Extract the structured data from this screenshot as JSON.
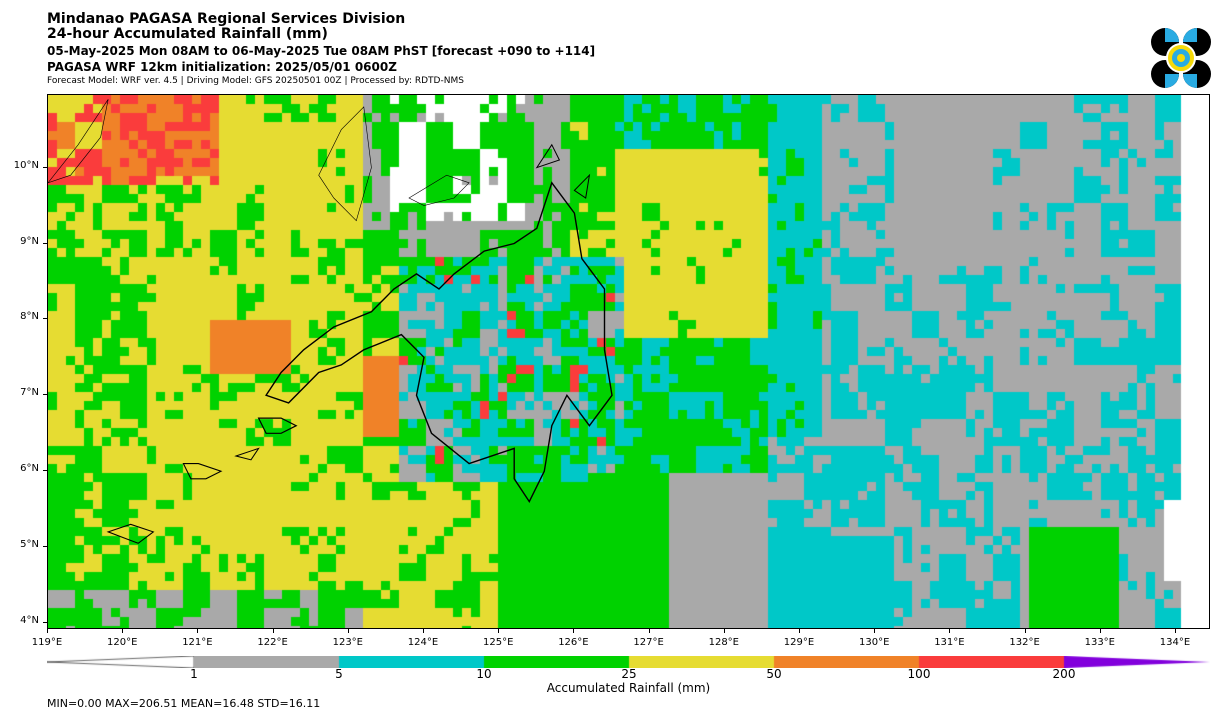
{
  "header": {
    "title": "Mindanao PAGASA Regional Services Division",
    "subtitle": "24-hour Accumulated Rainfall (mm)",
    "period": "05-May-2025 Mon 08AM to 06-May-2025 Tue 08AM PhST [forecast +090 to +114]",
    "init": "PAGASA WRF 12km initialization: 2025/05/01 0600Z",
    "credits": "Forecast Model: WRF ver. 4.5 | Driving Model: GFS 20250501 00Z | Processed by: RDTD-NMS"
  },
  "logo": {
    "icon": "pagasa-seal-icon",
    "colors": [
      "#000000",
      "#29abe2",
      "#f5d90a"
    ]
  },
  "map": {
    "lon_range": [
      119,
      134.5
    ],
    "lat_range": [
      3.9,
      10.95
    ],
    "lat_labels": [
      "4°N",
      "5°N",
      "6°N",
      "7°N",
      "8°N",
      "9°N",
      "10°N"
    ],
    "lon_labels": [
      "119°E",
      "120°E",
      "121°E",
      "122°E",
      "123°E",
      "124°E",
      "125°E",
      "126°E",
      "127°E",
      "128°E",
      "129°E",
      "130°E",
      "131°E",
      "132°E",
      "133°E",
      "134°E"
    ]
  },
  "colorbar": {
    "title": "Accumulated Rainfall (mm)",
    "levels": [
      "1",
      "5",
      "10",
      "25",
      "50",
      "100",
      "200"
    ],
    "colors": [
      "#ffffff",
      "#a9a9a9",
      "#00c8c8",
      "#00d200",
      "#e6dc32",
      "#f08228",
      "#fa3c3c",
      "#8200dc"
    ]
  },
  "stats": "MIN=0.00   MAX=206.51   MEAN=16.48   STD=16.11"
}
